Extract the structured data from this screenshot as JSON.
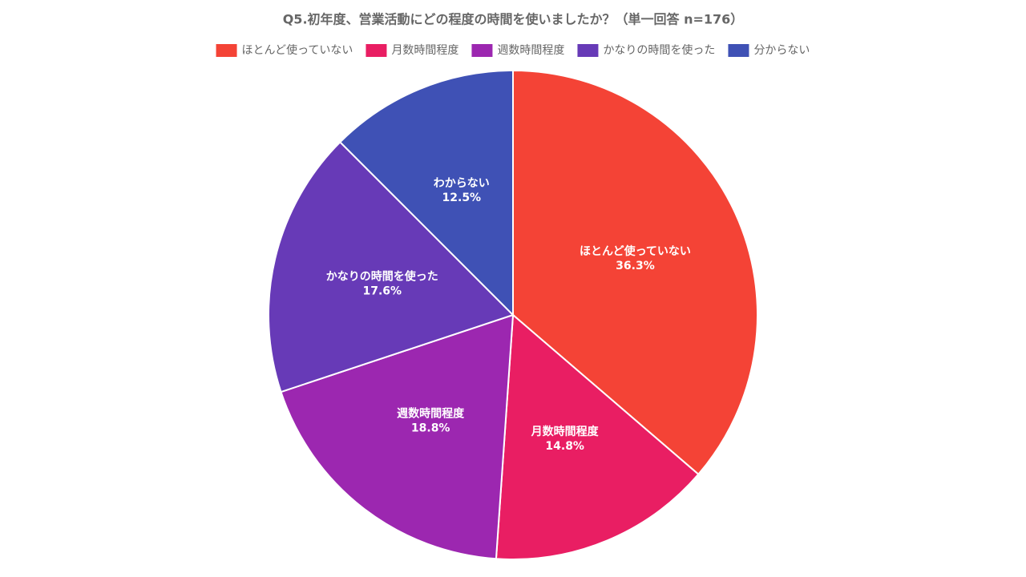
{
  "chart_data": {
    "type": "pie",
    "title": "Q5.初年度、営業活動にどの程度の時間を使いましたか？（単一回答 n=176）",
    "categories": [
      "ほとんど使っていない",
      "月数時間程度",
      "週数時間程度",
      "かなりの時間を使った",
      "分からない"
    ],
    "slice_labels": [
      "ほとんど使っていない",
      "月数時間程度",
      "週数時間程度",
      "かなりの時間を使った",
      "わからない"
    ],
    "values": [
      36.3,
      14.8,
      18.8,
      17.6,
      12.5
    ],
    "value_labels": [
      "36.3%",
      "14.8%",
      "18.8%",
      "17.6%",
      "12.5%"
    ],
    "colors": [
      "#f44336",
      "#e91e63",
      "#9c27b0",
      "#673ab7",
      "#3f51b5"
    ],
    "legend": "top"
  }
}
